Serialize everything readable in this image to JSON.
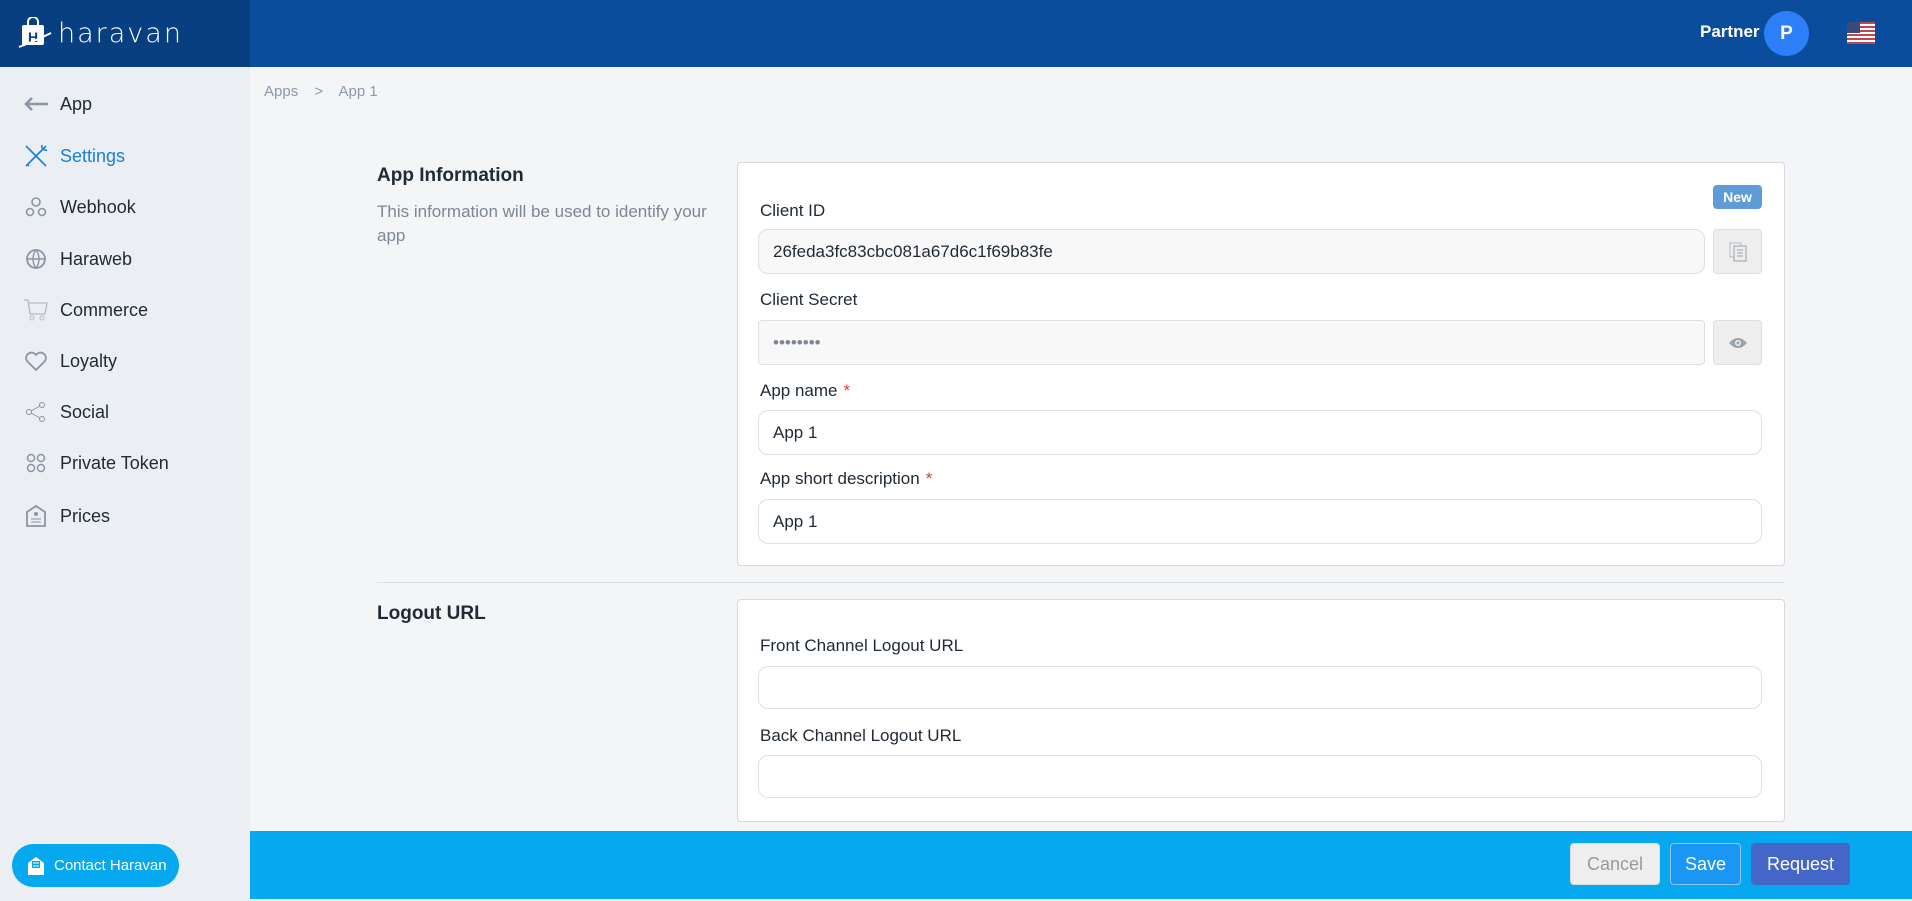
{
  "header": {
    "logo_text": "haravan",
    "partner_label": "Partner",
    "avatar_initial": "P",
    "language_flag": "us-flag-icon"
  },
  "sidebar": {
    "items": [
      {
        "label": "App",
        "icon": "arrow-left-icon"
      },
      {
        "label": "Settings",
        "icon": "tools-icon",
        "active": true
      },
      {
        "label": "Webhook",
        "icon": "webhook-icon"
      },
      {
        "label": "Haraweb",
        "icon": "globe-icon"
      },
      {
        "label": "Commerce",
        "icon": "cart-icon"
      },
      {
        "label": "Loyalty",
        "icon": "heart-icon"
      },
      {
        "label": "Social",
        "icon": "share-icon"
      },
      {
        "label": "Private Token",
        "icon": "circles-icon"
      },
      {
        "label": "Prices",
        "icon": "price-tag-icon"
      }
    ],
    "contact_label": "Contact Haravan"
  },
  "breadcrumb": {
    "items": [
      "Apps",
      ">",
      "App 1"
    ]
  },
  "app_information": {
    "title": "App Information",
    "description": "This information will be used to identify your app",
    "badge": "New",
    "client_id_label": "Client ID",
    "client_id_value": "26feda3fc83cbc081a67d6c1f69b83fe",
    "client_secret_label": "Client Secret",
    "client_secret_value": "••••••••",
    "app_name_label": "App name",
    "app_name_value": "App 1",
    "short_desc_label": "App short description",
    "short_desc_value": "App 1",
    "required_mark": "*"
  },
  "logout": {
    "title": "Logout URL",
    "front_label": "Front Channel Logout URL",
    "front_value": "",
    "back_label": "Back Channel Logout URL",
    "back_value": ""
  },
  "footer": {
    "cancel": "Cancel",
    "save": "Save",
    "request": "Request"
  },
  "colors": {
    "header": "#0a4d9c",
    "footer": "#06a9f0",
    "active": "#1a7fd9",
    "request": "#4566c9"
  }
}
